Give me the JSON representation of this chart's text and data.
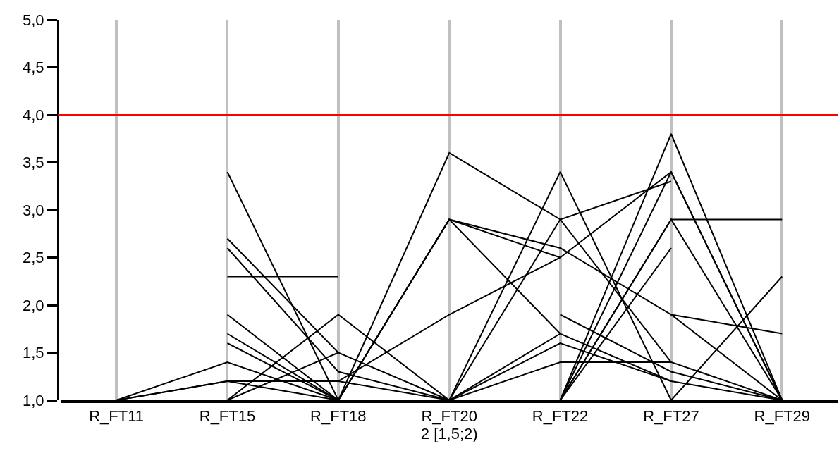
{
  "chart_data": {
    "type": "line",
    "xlabel": "2 [1,5;2)",
    "categories": [
      "R_FT11",
      "R_FT15",
      "R_FT18",
      "R_FT20",
      "R_FT22",
      "R_FT27",
      "R_FT29"
    ],
    "ylim": [
      1,
      5
    ],
    "yticks": [
      {
        "value": 1,
        "label": "1,0"
      },
      {
        "value": 1.5,
        "label": "1,5"
      },
      {
        "value": 2,
        "label": "2,0"
      },
      {
        "value": 2.5,
        "label": "2,5"
      },
      {
        "value": 3,
        "label": "3,0"
      },
      {
        "value": 3.5,
        "label": "3,5"
      },
      {
        "value": 4,
        "label": "4,0"
      },
      {
        "value": 4.5,
        "label": "4,5"
      },
      {
        "value": 5,
        "label": "5,0"
      }
    ],
    "grid": "x",
    "marker": "none",
    "line_style": "solid",
    "ref_lines": [
      {
        "axis": "y",
        "value": 4,
        "color": "#ff0000"
      }
    ],
    "series": [
      {
        "color": "#000000",
        "values": [
          1,
          1.4,
          1,
          3.6,
          2.9,
          1.4,
          1
        ]
      },
      {
        "color": "#000000",
        "values": [
          1,
          1.2,
          1.2,
          1.9,
          2.5,
          3.4,
          1
        ]
      },
      {
        "color": "#000000",
        "values": [
          1,
          1.2,
          1,
          2.9,
          2.6,
          1.9,
          1.7
        ]
      },
      {
        "color": "#000000",
        "values": [
          1,
          1,
          1.9,
          1,
          3.4,
          1,
          2.3
        ]
      },
      {
        "color": "#000000",
        "values": [
          null,
          2.7,
          1.5,
          1,
          2.9,
          3.3,
          null
        ]
      },
      {
        "color": "#000000",
        "values": [
          null,
          2.6,
          1.3,
          1,
          1.7,
          1.2,
          1
        ]
      },
      {
        "color": "#000000",
        "values": [
          null,
          2.3,
          2.3,
          null,
          null,
          null,
          null
        ]
      },
      {
        "color": "#000000",
        "values": [
          null,
          3.4,
          1,
          1,
          1.6,
          1.2,
          null
        ]
      },
      {
        "color": "#000000",
        "values": [
          null,
          1.9,
          1,
          2.9,
          2.5,
          null,
          null
        ]
      },
      {
        "color": "#000000",
        "values": [
          null,
          1.7,
          1,
          2.9,
          1.7,
          null,
          null
        ]
      },
      {
        "color": "#000000",
        "values": [
          null,
          1.6,
          1,
          null,
          null,
          null,
          null
        ]
      },
      {
        "color": "#000000",
        "values": [
          null,
          1,
          1.5,
          null,
          null,
          null,
          null
        ]
      },
      {
        "color": "#000000",
        "values": [
          null,
          1,
          1,
          null,
          null,
          null,
          null
        ]
      },
      {
        "color": "#000000",
        "values": [
          null,
          null,
          1.2,
          1,
          1.4,
          1.4,
          null
        ]
      },
      {
        "color": "#000000",
        "values": [
          null,
          null,
          null,
          null,
          1.9,
          1.3,
          1
        ]
      },
      {
        "color": "#000000",
        "values": [
          null,
          null,
          null,
          null,
          1,
          3.8,
          1
        ]
      },
      {
        "color": "#000000",
        "values": [
          null,
          null,
          null,
          null,
          1,
          3.4,
          1
        ]
      },
      {
        "color": "#000000",
        "values": [
          null,
          null,
          null,
          null,
          1,
          2.9,
          2.9
        ]
      },
      {
        "color": "#000000",
        "values": [
          null,
          null,
          null,
          null,
          1,
          2.9,
          1
        ]
      },
      {
        "color": "#000000",
        "values": [
          null,
          null,
          null,
          null,
          1,
          2.6,
          null
        ]
      },
      {
        "color": "#000000",
        "values": [
          null,
          null,
          null,
          null,
          null,
          1.9,
          1
        ]
      }
    ]
  }
}
